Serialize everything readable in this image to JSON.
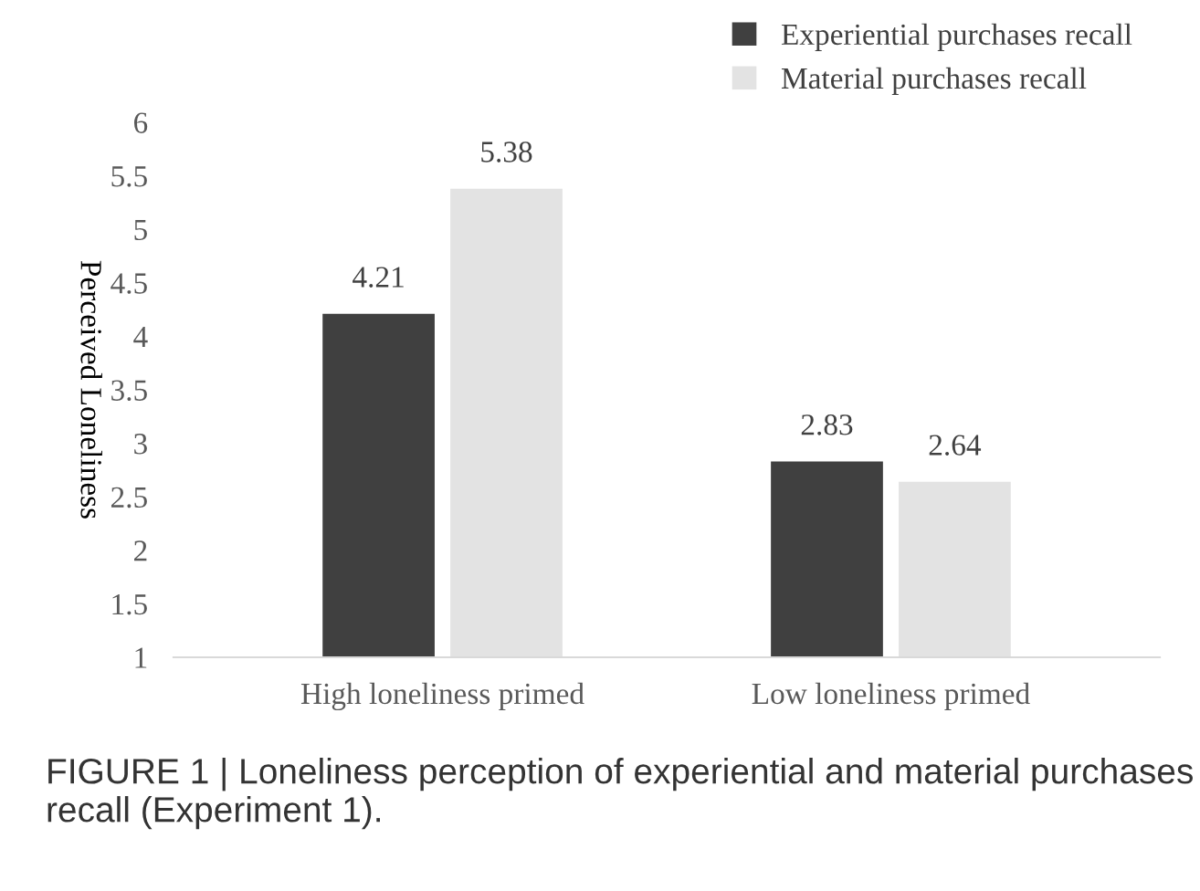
{
  "chart_data": {
    "type": "bar",
    "ylabel": "Perceived Loneliness",
    "categories": [
      "High loneliness primed",
      "Low loneliness primed"
    ],
    "series": [
      {
        "name": "Experiential purchases recall",
        "color": "#404040",
        "values": [
          4.21,
          2.83
        ]
      },
      {
        "name": "Material purchases recall",
        "color": "#e3e3e3",
        "values": [
          5.38,
          2.64
        ]
      }
    ],
    "ylim": [
      1,
      6
    ],
    "yticks": [
      1,
      1.5,
      2,
      2.5,
      3,
      3.5,
      4,
      4.5,
      5,
      5.5,
      6
    ],
    "data_labels": true,
    "legend": "top right",
    "grid": false,
    "annotations": [
      "FIGURE 1 | Loneliness perception of experiential and material purchases recall (Experiment 1)."
    ]
  }
}
